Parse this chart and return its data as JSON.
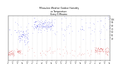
{
  "title": "Milwaukee Weather Outdoor Humidity\nvs Temperature\nEvery 5 Minutes",
  "title_fontsize": 2.2,
  "bg_color": "#ffffff",
  "blue_color": "#0000dd",
  "red_color": "#cc0000",
  "ylim_blue": [
    0,
    100
  ],
  "ylim_red": [
    -30,
    110
  ],
  "right_yticks": [
    40,
    50,
    60,
    70,
    80,
    90,
    100
  ],
  "right_ytick_labels": [
    "40",
    "50",
    "60",
    "70",
    "80",
    "90",
    "100"
  ],
  "marker_size": 0.3,
  "grid_color": "#bbbbbb",
  "grid_linestyle": ":",
  "grid_linewidth": 0.25,
  "n_points": 800,
  "seed": 17
}
